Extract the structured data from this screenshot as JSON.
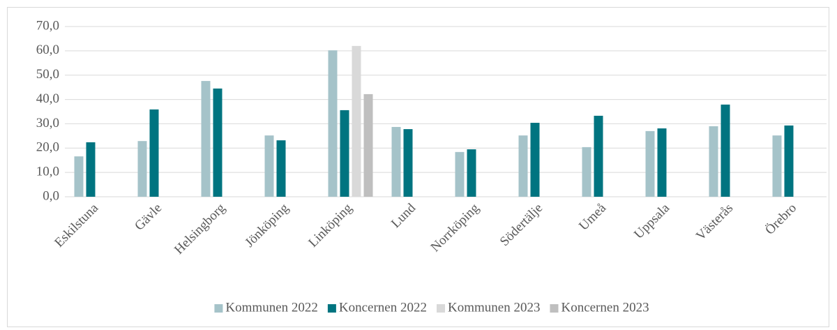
{
  "chart_data": {
    "type": "bar",
    "categories": [
      "Eskilstuna",
      "Gävle",
      "Helsingborg",
      "Jönköping",
      "Linköping",
      "Lund",
      "Norrköping",
      "Södertälje",
      "Umeå",
      "Uppsala",
      "Västerås",
      "Örebro"
    ],
    "series": [
      {
        "name": "Kommunen 2022",
        "color": "#a5c3c9",
        "values": [
          16.6,
          22.9,
          47.6,
          25.2,
          60.2,
          28.7,
          18.4,
          25.2,
          20.4,
          27.0,
          29.0,
          25.2
        ]
      },
      {
        "name": "Koncernen 2022",
        "color": "#007480",
        "values": [
          22.4,
          35.9,
          44.5,
          23.2,
          35.6,
          27.8,
          19.5,
          30.4,
          33.3,
          28.1,
          37.9,
          29.3
        ]
      },
      {
        "name": "Kommunen 2023",
        "color": "#d9d9d9",
        "values": [
          null,
          null,
          null,
          null,
          62.0,
          null,
          null,
          null,
          null,
          null,
          null,
          null
        ]
      },
      {
        "name": "Koncernen 2023",
        "color": "#bfbfbf",
        "values": [
          null,
          null,
          null,
          null,
          42.2,
          null,
          null,
          null,
          null,
          null,
          null,
          null
        ]
      }
    ],
    "ylim": [
      0,
      70
    ],
    "yticks": [
      {
        "value": 0,
        "label": "0,0"
      },
      {
        "value": 10,
        "label": "10,0"
      },
      {
        "value": 20,
        "label": "20,0"
      },
      {
        "value": 30,
        "label": "30,0"
      },
      {
        "value": 40,
        "label": "40,0"
      },
      {
        "value": 50,
        "label": "50,0"
      },
      {
        "value": 60,
        "label": "60,0"
      },
      {
        "value": 70,
        "label": "70,0"
      }
    ],
    "grid": true,
    "legend": "bottom"
  }
}
